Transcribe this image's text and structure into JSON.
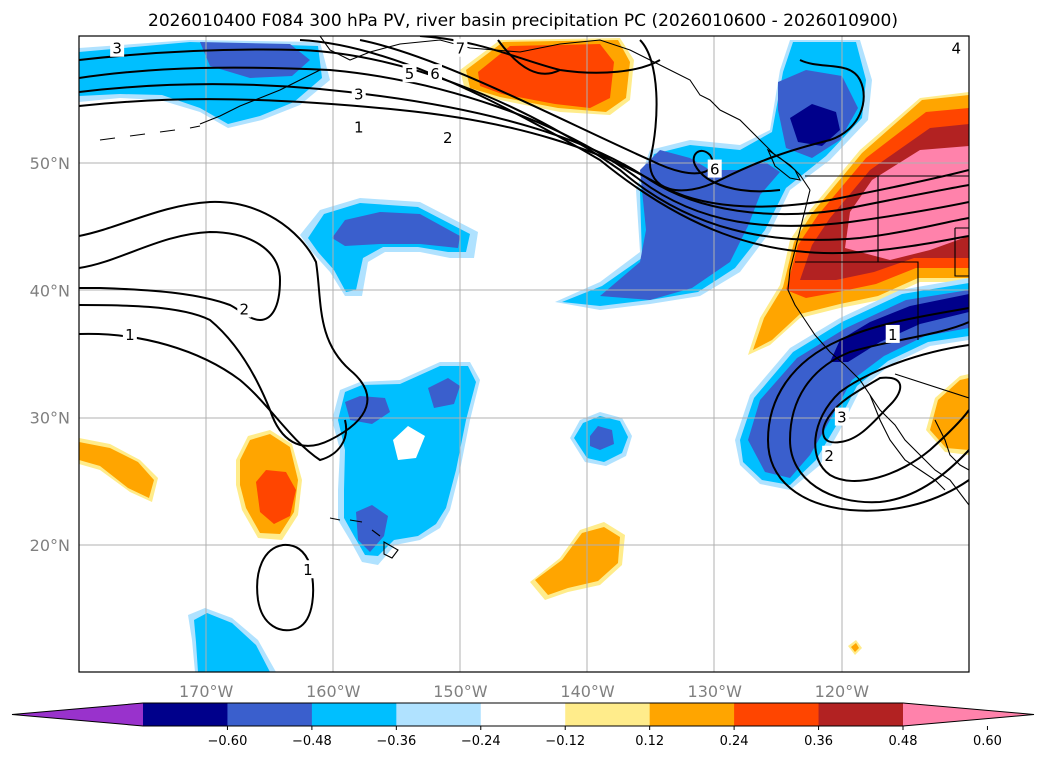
{
  "chart_data": {
    "type": "filled-contour-map",
    "title": "2026010400 F084 300 hPa PV, river basin precipitation PC (2026010600 - 2026010900)",
    "lon_range": [
      -180,
      -110
    ],
    "lat_range": [
      10,
      60
    ],
    "lon_ticks": [
      {
        "value": -170,
        "label": "170°W"
      },
      {
        "value": -160,
        "label": "160°W"
      },
      {
        "value": -150,
        "label": "150°W"
      },
      {
        "value": -140,
        "label": "140°W"
      },
      {
        "value": -130,
        "label": "130°W"
      },
      {
        "value": -120,
        "label": "120°W"
      }
    ],
    "lat_ticks": [
      {
        "value": 50,
        "label": "50°N"
      },
      {
        "value": 40,
        "label": "40°N"
      },
      {
        "value": 30,
        "label": "30°N"
      },
      {
        "value": 20,
        "label": "20°N"
      }
    ],
    "colorbar": {
      "levels": [
        -0.6,
        -0.48,
        -0.36,
        -0.24,
        -0.12,
        0.12,
        0.24,
        0.36,
        0.48,
        0.6
      ],
      "tick_labels": [
        "−0.60",
        "−0.48",
        "−0.36",
        "−0.24",
        "−0.12",
        "0.12",
        "0.24",
        "0.36",
        "0.48",
        "0.60"
      ],
      "colors": [
        "#9932cc",
        "#00008b",
        "#3a5fcd",
        "#00bfff",
        "#b0e2ff",
        "#ffffff",
        "#ffec8b",
        "#ffa500",
        "#ff4500",
        "#b22222",
        "#ff82ab"
      ],
      "extend": "both"
    },
    "pv_contour_levels": [
      1,
      2,
      3,
      4,
      5,
      6,
      7
    ],
    "pv_contour_labels": [
      {
        "text": "3",
        "lon": -177,
        "lat": 59
      },
      {
        "text": "7",
        "lon": -150,
        "lat": 59
      },
      {
        "text": "6",
        "lon": -152,
        "lat": 57
      },
      {
        "text": "5",
        "lon": -154,
        "lat": 57
      },
      {
        "text": "3",
        "lon": -158,
        "lat": 55.4
      },
      {
        "text": "1",
        "lon": -158,
        "lat": 52.8
      },
      {
        "text": "2",
        "lon": -151,
        "lat": 52
      },
      {
        "text": "6",
        "lon": -130,
        "lat": 49.5
      },
      {
        "text": "2",
        "lon": -167,
        "lat": 38.5
      },
      {
        "text": "1",
        "lon": -176,
        "lat": 36.5
      },
      {
        "text": "1",
        "lon": -116,
        "lat": 36.5
      },
      {
        "text": "3",
        "lon": -120,
        "lat": 30
      },
      {
        "text": "2",
        "lon": -121,
        "lat": 27
      },
      {
        "text": "1",
        "lon": -162,
        "lat": 18
      },
      {
        "text": "4",
        "lon": -111,
        "lat": 59
      }
    ]
  }
}
